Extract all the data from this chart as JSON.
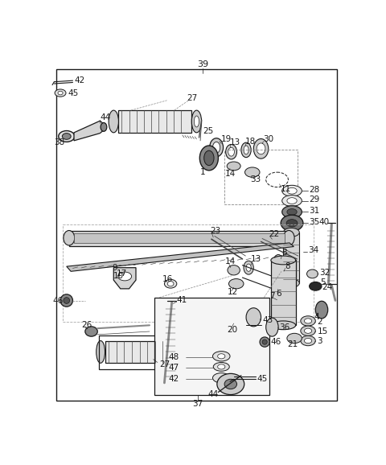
{
  "bg_color": "#ffffff",
  "line_color": "#1a1a1a",
  "gray_dark": "#444444",
  "gray_mid": "#888888",
  "gray_light": "#cccccc",
  "gray_fill": "#d4d4d4",
  "fig_width": 4.8,
  "fig_height": 5.78,
  "dpi": 100
}
